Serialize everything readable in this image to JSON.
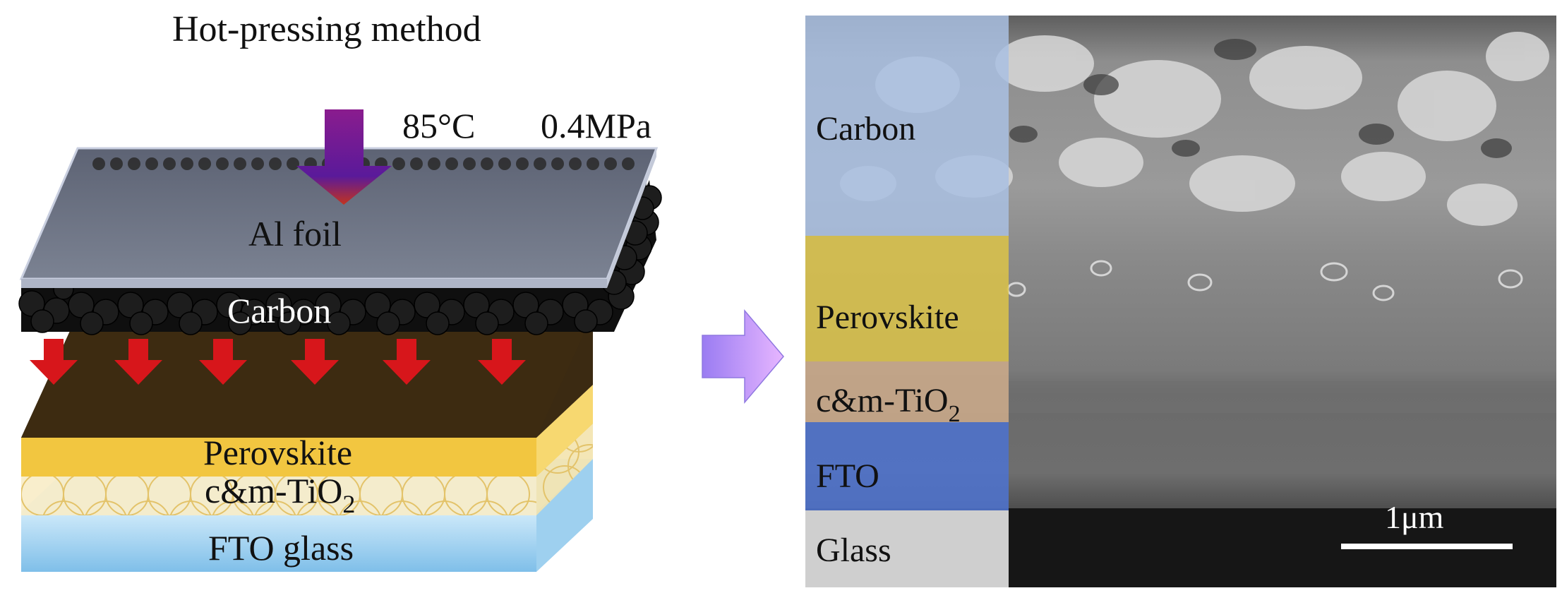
{
  "left_panel": {
    "title": "Hot-pressing method",
    "temperature": "85°C",
    "pressure": "0.4MPa",
    "layers": {
      "al_foil": "Al foil",
      "carbon": "Carbon",
      "perovskite": "Perovskite",
      "tio2_prefix": "c&m-TiO",
      "tio2_sub": "2",
      "fto_glass": "FTO glass"
    }
  },
  "right_panel": {
    "layers": {
      "carbon": "Carbon",
      "perovskite": "Perovskite",
      "tio2_prefix": "c&m-TiO",
      "tio2_sub": "2",
      "fto": "FTO",
      "glass": "Glass"
    },
    "scale_bar": "1μm"
  },
  "colors": {
    "al_foil_top": "#6f7585",
    "carbon": "#111111",
    "perovskite_top": "#3b2a12",
    "perovskite_side": "#f2c640",
    "tio2": "#f7e6b0",
    "fto_glass": "#a9d6f2",
    "press_arrow": "#6a1a8a",
    "heat_arrows": "#d7161b",
    "transition_arrow": "#b48cf0",
    "overlay_carbon": "#a9bfe2",
    "overlay_perovskite": "#d9c24a",
    "overlay_tio2": "#c9a98a",
    "overlay_fto": "#4f72c9",
    "overlay_glass": "#cfcfcf"
  }
}
